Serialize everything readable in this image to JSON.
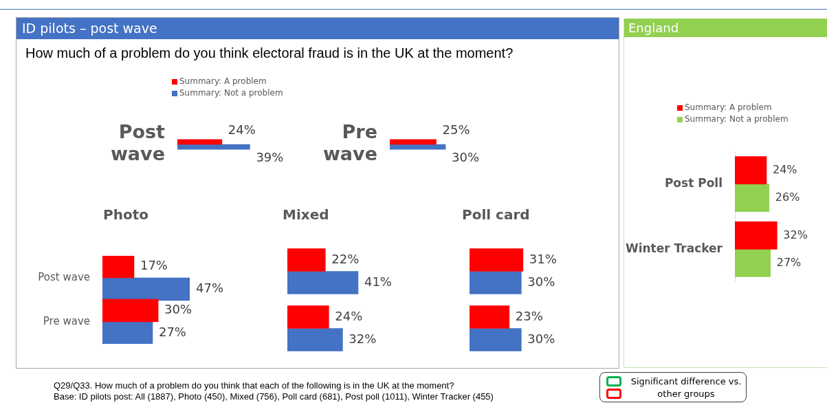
{
  "chart_data": [
    {
      "type": "bar",
      "orientation": "horizontal",
      "title": "ID pilots – post wave",
      "subtitle": "How much of a problem do you think electoral fraud is in the UK at the moment?",
      "categories": [
        "Post wave"
      ],
      "series": [
        {
          "name": "Summary: A problem",
          "color": "#ff0000",
          "values": [
            24
          ],
          "value_labels": [
            "24%"
          ]
        },
        {
          "name": "Summary: Not a problem",
          "color": "#4472c4",
          "values": [
            39
          ],
          "value_labels": [
            "39%"
          ]
        }
      ],
      "tick_labels": "y",
      "legend": "top",
      "annotations": [
        "Q29/Q33. How much of a problem do you think that each of the following is in the UK at the moment?",
        "Base: ID pilots post: All (1887), Photo (450), Mixed (756), Poll card (681), Post poll (1011), Winter Tracker (455)"
      ]
    },
    {
      "type": "bar",
      "orientation": "horizontal",
      "categories": [
        "Pre wave"
      ],
      "series": [
        {
          "color": "#ff0000",
          "values": [
            25
          ],
          "value_labels": [
            "25%"
          ]
        },
        {
          "color": "#4472c4",
          "values": [
            30
          ],
          "value_labels": [
            "30%"
          ]
        }
      ],
      "tick_labels": "y"
    },
    {
      "type": "bar",
      "orientation": "horizontal",
      "title": "Photo",
      "categories": [
        "Post wave",
        "Pre wave"
      ],
      "series": [
        {
          "color": "#ff0000",
          "values": [
            17,
            30
          ],
          "value_labels": [
            "17%",
            "30%"
          ]
        },
        {
          "color": "#4472c4",
          "values": [
            47,
            27
          ],
          "value_labels": [
            "47%",
            "27%"
          ]
        }
      ],
      "tick_labels": "y"
    },
    {
      "type": "bar",
      "orientation": "horizontal",
      "title": "Mixed",
      "categories": [
        null,
        null
      ],
      "series": [
        {
          "color": "#ff0000",
          "values": [
            22,
            24
          ],
          "value_labels": [
            "22%",
            "24%"
          ]
        },
        {
          "color": "#4472c4",
          "values": [
            41,
            32
          ],
          "value_labels": [
            "41%",
            "32%"
          ]
        }
      ],
      "tick_labels": false
    },
    {
      "type": "bar",
      "orientation": "horizontal",
      "title": "Poll card",
      "categories": [
        null,
        null
      ],
      "series": [
        {
          "color": "#ff0000",
          "values": [
            31,
            23
          ],
          "value_labels": [
            "31%",
            "23%"
          ]
        },
        {
          "color": "#4472c4",
          "values": [
            30,
            30
          ],
          "value_labels": [
            "30%",
            "30%"
          ]
        }
      ],
      "tick_labels": false
    },
    {
      "type": "bar",
      "orientation": "horizontal",
      "title": "England",
      "categories": [
        "Post Poll",
        "Winter Tracker"
      ],
      "series": [
        {
          "name": "Summary: A problem",
          "color": "#ff0000",
          "values": [
            24,
            32
          ],
          "value_labels": [
            "24%",
            "32%"
          ]
        },
        {
          "name": "Summary: Not a problem",
          "color": "#92d050",
          "values": [
            26,
            27
          ],
          "value_labels": [
            "26%",
            "27%"
          ]
        }
      ],
      "tick_labels": "y",
      "legend": "top",
      "annotations": [
        "Significant difference vs. other groups"
      ]
    }
  ]
}
